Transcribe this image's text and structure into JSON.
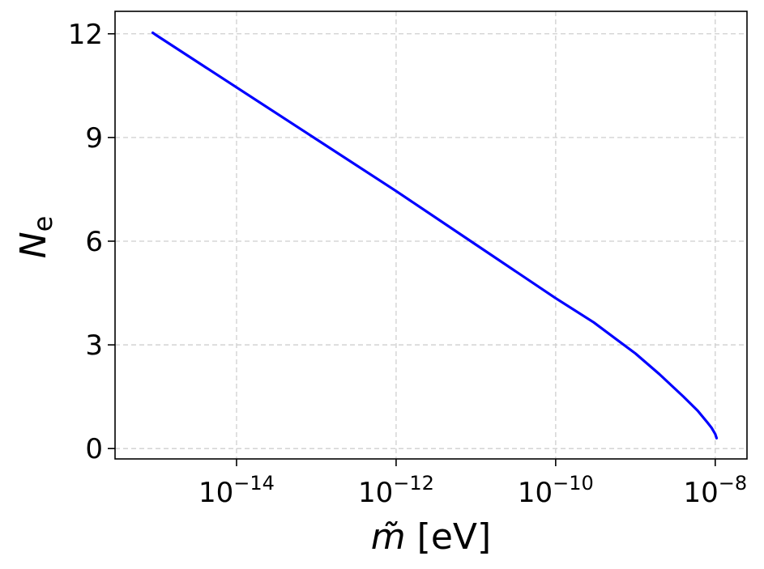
{
  "chart_data": {
    "type": "line",
    "title": "",
    "xlabel": {
      "symbol": "m̃",
      "unit": "[eV]"
    },
    "ylabel": {
      "base": "N",
      "subscript": "e"
    },
    "xscale": "log",
    "xlim": [
      3e-16,
      2.5e-08
    ],
    "ylim": [
      -0.3,
      12.65
    ],
    "grid": true,
    "xticks": [
      {
        "value": 1e-14,
        "base": "10",
        "exponent": "−14"
      },
      {
        "value": 1e-12,
        "base": "10",
        "exponent": "−12"
      },
      {
        "value": 1e-10,
        "base": "10",
        "exponent": "−10"
      },
      {
        "value": 1e-08,
        "base": "10",
        "exponent": "−8"
      }
    ],
    "yticks": [
      {
        "value": 0,
        "label": "0"
      },
      {
        "value": 3,
        "label": "3"
      },
      {
        "value": 6,
        "label": "6"
      },
      {
        "value": 9,
        "label": "9"
      },
      {
        "value": 12,
        "label": "12"
      }
    ],
    "series": [
      {
        "color": "#0000ff",
        "x": [
          8.9e-16,
          1e-15,
          1e-14,
          1e-13,
          1e-12,
          1e-11,
          1e-10,
          3e-10,
          1e-09,
          2e-09,
          4e-09,
          6e-09,
          8e-09,
          9e-09,
          1e-08,
          1.04e-08
        ],
        "y": [
          12.03,
          11.95,
          10.45,
          8.95,
          7.45,
          5.9,
          4.35,
          3.65,
          2.75,
          2.15,
          1.5,
          1.1,
          0.75,
          0.6,
          0.42,
          0.3
        ]
      }
    ]
  }
}
